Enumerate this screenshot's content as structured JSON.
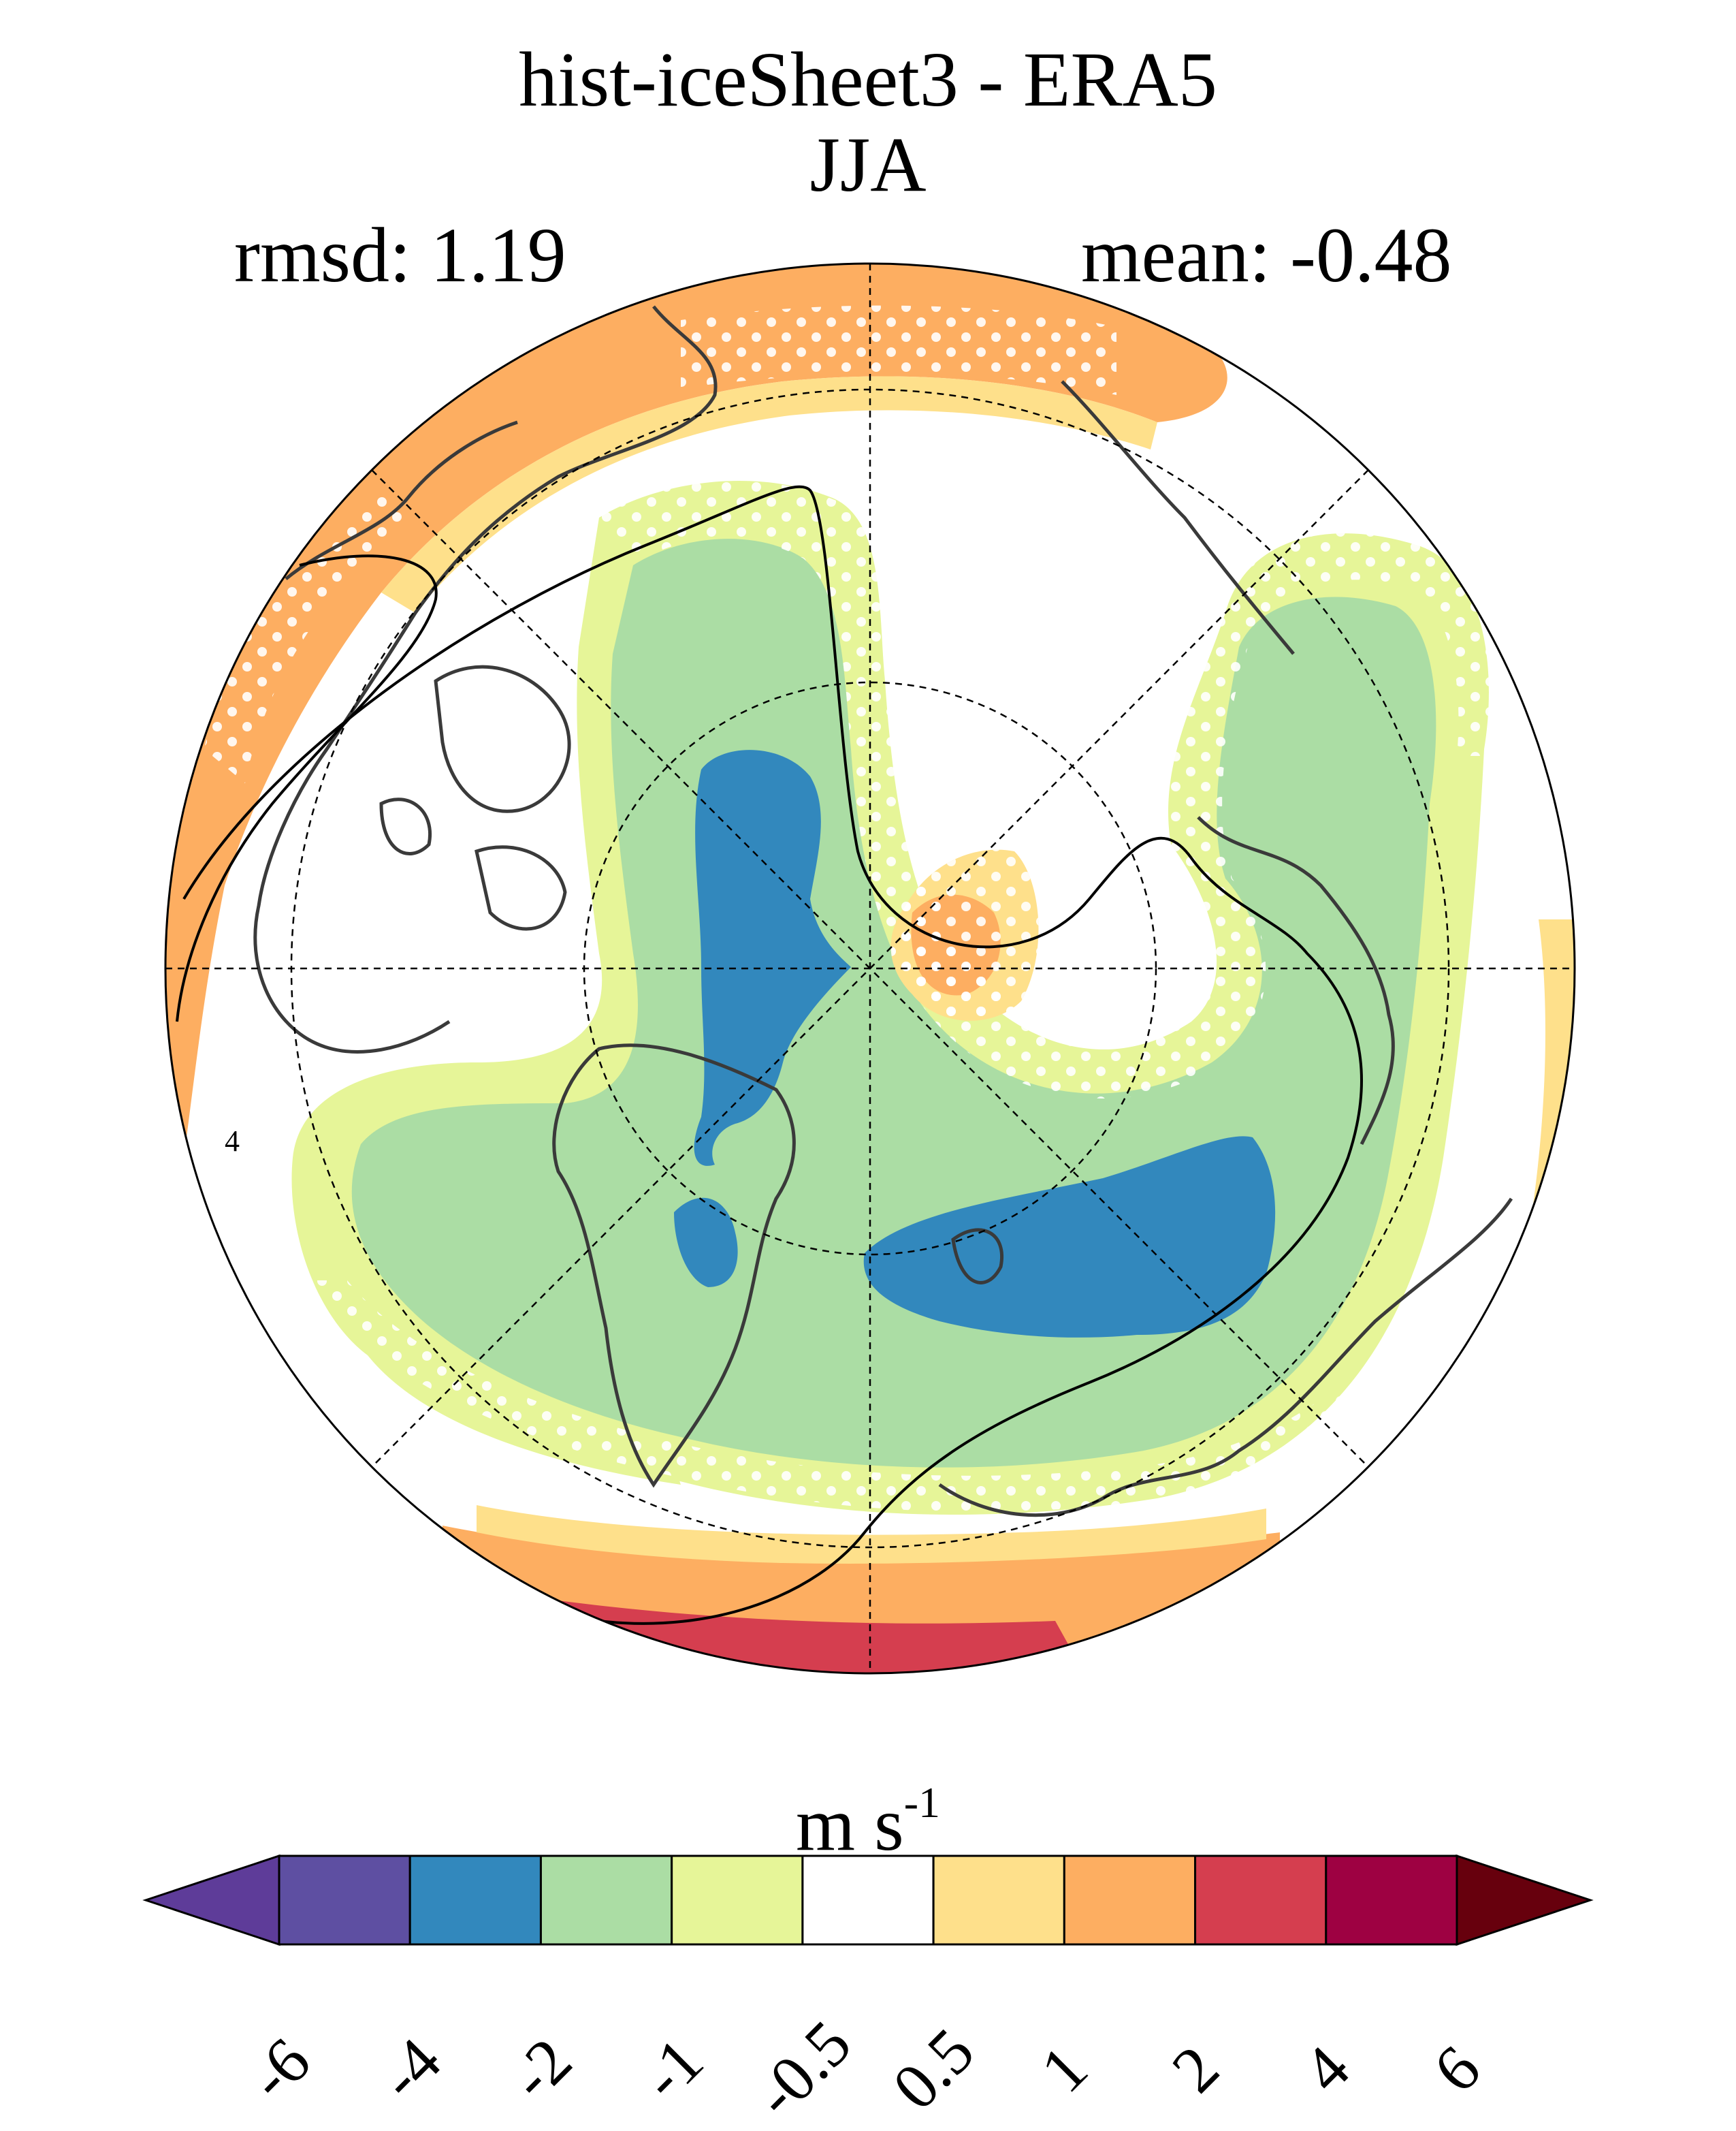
{
  "map": {
    "title": "hist-iceSheet3 - ERA5",
    "season": "JJA",
    "rmsd_label": "rmsd: 1.19",
    "mean_label": "mean: -0.48",
    "projection": "north polar stereographic",
    "stippling": "white dots",
    "contour_label": "4"
  },
  "colorbar": {
    "units": "m s",
    "units_exponent": "-1",
    "ticks": [
      "-6",
      "-4",
      "-2",
      "-1",
      "-0.5",
      "0.5",
      "1",
      "2",
      "4",
      "6"
    ],
    "colors": [
      "#5e4fa2",
      "#3288bd",
      "#abdda4",
      "#e6f598",
      "#ffffff",
      "#fee08b",
      "#fdae61",
      "#d53e4f",
      "#9e0142"
    ],
    "under_color": "#5e3c99",
    "over_color": "#67000d"
  }
}
